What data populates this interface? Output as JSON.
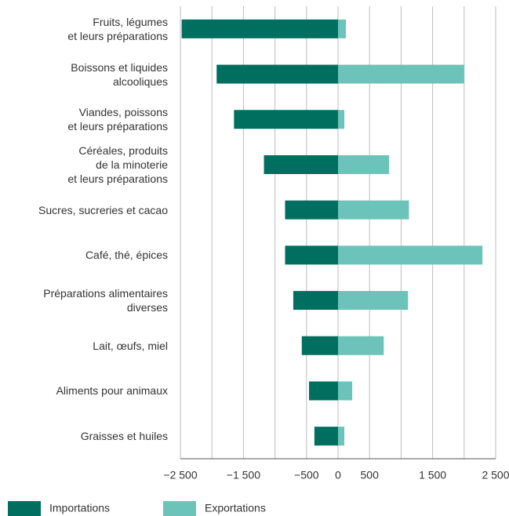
{
  "chart_data": {
    "type": "diverging-bar",
    "categories": [
      "Fruits, légumes\net leurs préparations",
      "Boissons et liquides\nalcooliques",
      "Viandes, poissons\net leurs préparations",
      "Céréales, produits\nde la minoterie\net leurs préparations",
      "Sucres, sucreries et cacao",
      "Café, thé, épices",
      "Préparations alimentaires\ndiverses",
      "Lait, œufs, miel",
      "Aliments pour animaux",
      "Graisses et huiles"
    ],
    "series": [
      {
        "name": "Importations",
        "color": "#006f5f",
        "values": [
          -2480,
          -1925,
          -1650,
          -1175,
          -840,
          -840,
          -710,
          -575,
          -460,
          -375
        ]
      },
      {
        "name": "Exportations",
        "color": "#6cc3b9",
        "values": [
          125,
          2000,
          100,
          810,
          1125,
          2290,
          1110,
          725,
          225,
          100
        ]
      }
    ],
    "xlim": [
      -2500,
      2500
    ],
    "xticks": [
      {
        "value": -2500,
        "label": "−2 500"
      },
      {
        "value": -1500,
        "label": "−1 500"
      },
      {
        "value": -500,
        "label": "−500"
      },
      0,
      500,
      {
        "value": 1500,
        "label": "1 500"
      },
      {
        "value": 2500,
        "label": "2 500"
      }
    ],
    "xminor": [
      -2000,
      -1000,
      1000,
      2000
    ],
    "grid": true,
    "legend": "bottom"
  }
}
